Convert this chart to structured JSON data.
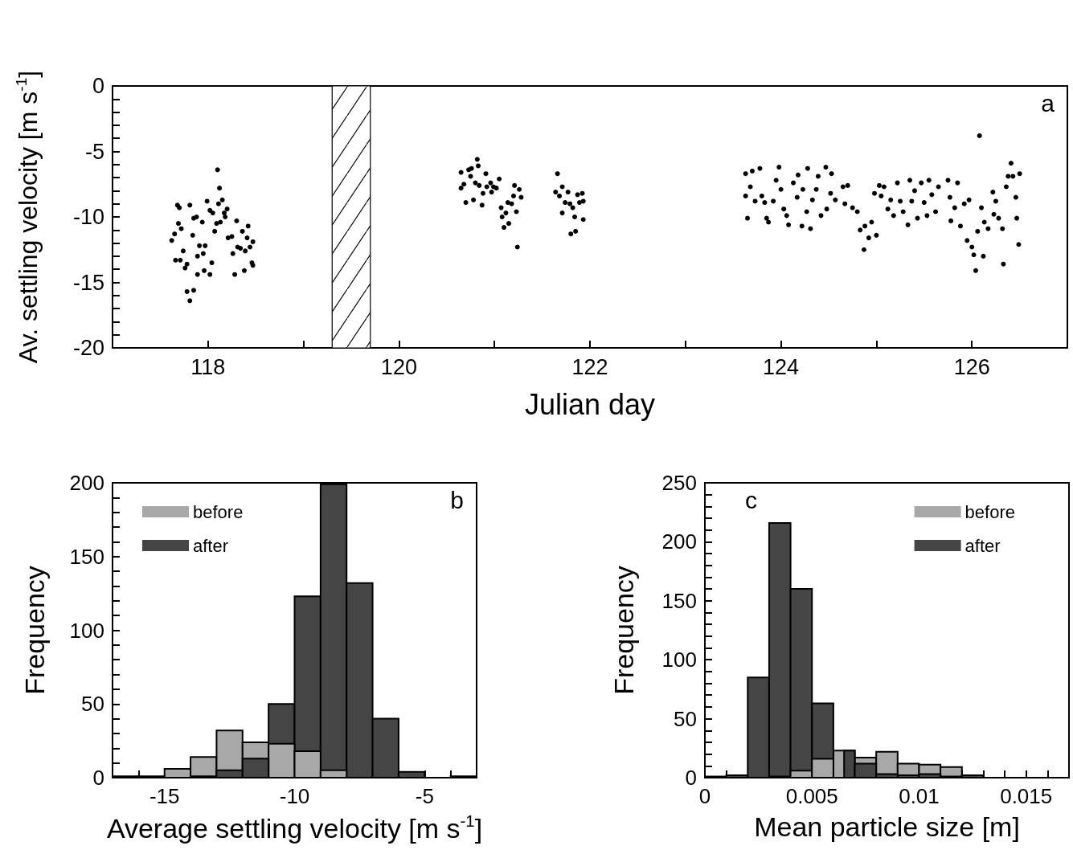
{
  "chart_data": [
    {
      "type": "scatter",
      "xlabel": "Julian day",
      "ylabel": "Av. settling velocity [m s$^{-1}$]",
      "annotations": [
        "a"
      ],
      "marker": "circle",
      "xlim": [
        117,
        127
      ],
      "xticks": [
        118,
        {
          "value": 119,
          "label": null
        },
        120,
        {
          "value": 121,
          "label": null
        },
        122,
        {
          "value": 123,
          "label": null
        },
        124,
        {
          "value": 125,
          "label": null
        },
        126
      ],
      "ylim": [
        -20,
        0
      ],
      "yticks": [
        -20,
        {
          "value": -19,
          "label": null
        },
        {
          "value": -18,
          "label": null
        },
        {
          "value": -17,
          "label": null
        },
        {
          "value": -16,
          "label": null
        },
        -15,
        {
          "value": -14,
          "label": null
        },
        {
          "value": -13,
          "label": null
        },
        {
          "value": -12,
          "label": null
        },
        {
          "value": -11,
          "label": null
        },
        -10,
        {
          "value": -9,
          "label": null
        },
        {
          "value": -8,
          "label": null
        },
        {
          "value": -7,
          "label": null
        },
        {
          "value": -6,
          "label": null
        },
        -5,
        {
          "value": -4,
          "label": null
        },
        {
          "value": -3,
          "label": null
        },
        {
          "value": -2,
          "label": null
        },
        {
          "value": -1,
          "label": null
        },
        0
      ],
      "bands": [
        {
          "axis": "x",
          "from": 119.3,
          "to": 119.7
        }
      ],
      "series": [
        {
          "color": "#000000",
          "x": [
            117.62,
            117.65,
            117.68,
            117.7,
            117.69,
            117.66,
            117.71,
            117.72,
            117.74,
            117.76,
            117.78,
            117.78,
            117.81,
            117.85,
            117.81,
            117.85,
            117.88,
            117.84,
            117.89,
            117.89,
            117.91,
            117.94,
            117.95,
            117.97,
            117.96,
            117.99,
            118.02,
            118.02,
            118.04,
            118.05,
            118.07,
            118.09,
            118.1,
            118.12,
            118.11,
            118.13,
            118.15,
            118.17,
            118.18,
            118.2,
            118.21,
            118.25,
            118.26,
            118.28,
            118.3,
            118.31,
            118.34,
            118.36,
            118.38,
            118.39,
            118.41,
            118.42,
            118.44,
            118.46,
            118.47,
            118.47,
            120.65,
            120.65,
            120.68,
            120.7,
            120.73,
            120.75,
            120.76,
            120.78,
            120.8,
            120.82,
            120.83,
            120.84,
            120.87,
            120.88,
            120.91,
            120.92,
            120.96,
            120.97,
            120.99,
            121.02,
            121.05,
            121.07,
            121.08,
            121.1,
            121.12,
            121.14,
            121.15,
            121.18,
            121.2,
            121.21,
            121.23,
            121.24,
            121.26,
            121.28,
            121.66,
            121.64,
            121.68,
            121.71,
            121.71,
            121.74,
            121.77,
            121.79,
            121.8,
            121.82,
            121.84,
            121.85,
            121.87,
            121.89,
            121.92,
            121.93,
            121.93,
            123.63,
            123.63,
            123.65,
            123.68,
            123.7,
            123.73,
            123.78,
            123.8,
            123.83,
            123.85,
            123.87,
            123.92,
            123.95,
            123.98,
            124.0,
            124.03,
            124.06,
            124.08,
            124.13,
            124.17,
            124.18,
            124.22,
            124.23,
            124.27,
            124.28,
            124.31,
            124.33,
            124.37,
            124.39,
            124.42,
            124.47,
            124.48,
            124.52,
            124.53,
            124.57,
            124.65,
            124.67,
            124.7,
            124.75,
            124.8,
            124.83,
            124.87,
            124.88,
            124.92,
            124.95,
            124.98,
            125.0,
            125.03,
            125.05,
            125.08,
            125.12,
            125.15,
            125.18,
            125.22,
            125.25,
            125.28,
            125.33,
            125.35,
            125.37,
            125.4,
            125.43,
            125.47,
            125.5,
            125.53,
            125.55,
            125.58,
            125.62,
            125.65,
            125.75,
            125.77,
            125.78,
            125.82,
            125.85,
            125.88,
            125.92,
            125.95,
            125.97,
            126.0,
            126.02,
            126.04,
            126.06,
            126.08,
            126.1,
            126.12,
            126.13,
            126.17,
            126.22,
            126.23,
            126.25,
            126.28,
            126.32,
            126.33,
            126.36,
            126.38,
            126.41,
            126.43,
            126.46,
            126.47,
            126.49,
            126.5
          ],
          "values": [
            -11.8,
            -11.3,
            -9.1,
            -9.3,
            -10.5,
            -13.3,
            -13.3,
            -10.9,
            -12.6,
            -13.9,
            -13.6,
            -15.7,
            -16.4,
            -15.6,
            -9.1,
            -10.1,
            -10.0,
            -11.4,
            -13.0,
            -14.4,
            -12.2,
            -10.4,
            -12.8,
            -12.2,
            -14.1,
            -8.8,
            -9.5,
            -14.4,
            -13.5,
            -9.7,
            -11.1,
            -10.5,
            -6.4,
            -7.8,
            -9.0,
            -10.4,
            -8.7,
            -9.7,
            -10.0,
            -9.4,
            -11.6,
            -11.5,
            -12.8,
            -14.4,
            -10.3,
            -12.3,
            -12.4,
            -11.1,
            -14.1,
            -12.6,
            -11.6,
            -10.7,
            -12.3,
            -13.5,
            -13.7,
            -11.9,
            -6.6,
            -7.8,
            -7.5,
            -8.9,
            -6.4,
            -6.9,
            -6.3,
            -8.7,
            -7.4,
            -5.6,
            -6.1,
            -7.6,
            -9.1,
            -8.2,
            -6.7,
            -7.7,
            -7.4,
            -8.1,
            -7.7,
            -7.8,
            -7.1,
            -9.3,
            -10.0,
            -10.8,
            -9.7,
            -8.9,
            -10.5,
            -9.0,
            -8.4,
            -7.6,
            -9.6,
            -12.3,
            -7.9,
            -8.5,
            -6.7,
            -8.1,
            -8.4,
            -7.7,
            -9.7,
            -8.9,
            -8.1,
            -9.0,
            -11.3,
            -9.3,
            -10.0,
            -11.1,
            -8.3,
            -8.9,
            -8.2,
            -8.8,
            -10.2,
            -6.7,
            -8.4,
            -10.1,
            -7.7,
            -6.5,
            -8.8,
            -6.3,
            -8.4,
            -8.9,
            -10.1,
            -10.4,
            -8.8,
            -7.2,
            -6.2,
            -7.9,
            -9.4,
            -9.9,
            -10.6,
            -7.4,
            -8.5,
            -6.8,
            -10.7,
            -7.9,
            -9.6,
            -6.3,
            -10.9,
            -8.7,
            -7.9,
            -6.9,
            -9.9,
            -6.2,
            -9.4,
            -8.2,
            -6.7,
            -8.7,
            -7.7,
            -9.0,
            -7.6,
            -9.3,
            -9.6,
            -11.0,
            -12.5,
            -10.7,
            -11.6,
            -10.4,
            -8.2,
            -11.4,
            -7.6,
            -8.4,
            -7.7,
            -9.4,
            -8.7,
            -9.9,
            -7.4,
            -8.8,
            -9.6,
            -10.6,
            -7.2,
            -8.8,
            -8.0,
            -10.1,
            -7.4,
            -8.9,
            -9.9,
            -7.2,
            -8.3,
            -9.6,
            -7.7,
            -7.2,
            -8.5,
            -10.3,
            -9.3,
            -7.4,
            -10.7,
            -9.0,
            -11.8,
            -8.7,
            -12.3,
            -12.9,
            -14.1,
            -11.1,
            -3.8,
            -9.3,
            -13.0,
            -10.4,
            -10.9,
            -8.1,
            -9.8,
            -8.8,
            -10.1,
            -10.9,
            -13.6,
            -7.7,
            -6.9,
            -5.9,
            -6.9,
            -8.5,
            -10.1,
            -12.1,
            -6.7
          ]
        }
      ]
    },
    {
      "type": "histogram",
      "xlabel": "Average settling velocity [m s$^{-1}$]",
      "ylabel": "Frequency",
      "annotations": [
        "b"
      ],
      "legend": "top left",
      "xlim": [
        -17,
        -3
      ],
      "xticks": [
        {
          "value": -16,
          "label": null
        },
        -15,
        {
          "value": -14,
          "label": null
        },
        {
          "value": -13,
          "label": null
        },
        {
          "value": -12,
          "label": null
        },
        {
          "value": -11,
          "label": null
        },
        -10,
        {
          "value": -9,
          "label": null
        },
        {
          "value": -8,
          "label": null
        },
        {
          "value": -7,
          "label": null
        },
        {
          "value": -6,
          "label": null
        },
        -5,
        {
          "value": -4,
          "label": null
        }
      ],
      "ylim": [
        0,
        200
      ],
      "yticks": [
        0,
        {
          "value": 10,
          "label": null
        },
        {
          "value": 20,
          "label": null
        },
        {
          "value": 30,
          "label": null
        },
        {
          "value": 40,
          "label": null
        },
        50,
        {
          "value": 60,
          "label": null
        },
        {
          "value": 70,
          "label": null
        },
        {
          "value": 80,
          "label": null
        },
        {
          "value": 90,
          "label": null
        },
        100,
        {
          "value": 110,
          "label": null
        },
        {
          "value": 120,
          "label": null
        },
        {
          "value": 130,
          "label": null
        },
        {
          "value": 140,
          "label": null
        },
        150,
        {
          "value": 160,
          "label": null
        },
        {
          "value": 170,
          "label": null
        },
        {
          "value": 180,
          "label": null
        },
        {
          "value": 190,
          "label": null
        },
        200
      ],
      "bins": [
        -17,
        -16,
        -15,
        -14,
        -13,
        -12,
        -11,
        -10,
        -9,
        -8,
        -7,
        -6,
        -5,
        -4,
        -3
      ],
      "series": [
        {
          "name": "before",
          "color": "#a8a8a8",
          "values": [
            0,
            0,
            6,
            14,
            32,
            24,
            23,
            18,
            5,
            0,
            0,
            0,
            0,
            0
          ]
        },
        {
          "name": "after",
          "color": "#454545",
          "values": [
            1,
            1,
            0,
            1,
            5,
            13,
            50,
            123,
            199,
            132,
            40,
            4,
            0,
            1
          ]
        }
      ]
    },
    {
      "type": "histogram",
      "xlabel": "Mean particle size [m]",
      "ylabel": "Frequency",
      "annotations": [
        "c"
      ],
      "legend": "top right",
      "xlim": [
        0,
        0.017
      ],
      "xticks": [
        0,
        {
          "value": 0.001,
          "label": null
        },
        {
          "value": 0.002,
          "label": null
        },
        {
          "value": 0.003,
          "label": null
        },
        {
          "value": 0.004,
          "label": null
        },
        0.005,
        {
          "value": 0.006,
          "label": null
        },
        {
          "value": 0.007,
          "label": null
        },
        {
          "value": 0.008,
          "label": null
        },
        {
          "value": 0.009,
          "label": null
        },
        0.01,
        {
          "value": 0.011,
          "label": null
        },
        {
          "value": 0.012,
          "label": null
        },
        {
          "value": 0.013,
          "label": null
        },
        {
          "value": 0.014,
          "label": null
        },
        0.015,
        {
          "value": 0.016,
          "label": null
        }
      ],
      "ylim": [
        0,
        250
      ],
      "yticks": [
        0,
        {
          "value": 10,
          "label": null
        },
        {
          "value": 20,
          "label": null
        },
        {
          "value": 30,
          "label": null
        },
        {
          "value": 40,
          "label": null
        },
        50,
        {
          "value": 60,
          "label": null
        },
        {
          "value": 70,
          "label": null
        },
        {
          "value": 80,
          "label": null
        },
        {
          "value": 90,
          "label": null
        },
        100,
        {
          "value": 110,
          "label": null
        },
        {
          "value": 120,
          "label": null
        },
        {
          "value": 130,
          "label": null
        },
        {
          "value": 140,
          "label": null
        },
        150,
        {
          "value": 160,
          "label": null
        },
        {
          "value": 170,
          "label": null
        },
        {
          "value": 180,
          "label": null
        },
        {
          "value": 190,
          "label": null
        },
        200,
        {
          "value": 210,
          "label": null
        },
        {
          "value": 220,
          "label": null
        },
        {
          "value": 230,
          "label": null
        },
        {
          "value": 240,
          "label": null
        },
        250
      ],
      "bins": [
        0,
        0.001,
        0.002,
        0.003,
        0.004,
        0.005,
        0.006,
        0.007,
        0.008,
        0.009,
        0.01,
        0.011,
        0.012,
        0.013,
        0.014,
        0.015,
        0.016,
        0.017
      ],
      "series": [
        {
          "name": "before",
          "color": "#a8a8a8",
          "values": [
            0,
            0,
            0,
            1,
            6,
            16,
            23,
            17,
            22,
            12,
            11,
            9,
            0,
            0,
            0,
            0,
            0
          ]
        },
        {
          "name": "after",
          "color": "#454545",
          "values": [
            1,
            2,
            85,
            216,
            160,
            63,
            23,
            12,
            3,
            2,
            3,
            1,
            2,
            0,
            0,
            0,
            0
          ]
        }
      ]
    }
  ]
}
